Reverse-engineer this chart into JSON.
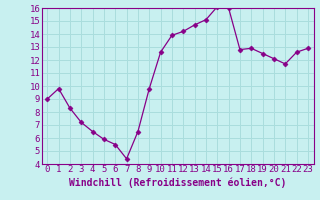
{
  "x": [
    0,
    1,
    2,
    3,
    4,
    5,
    6,
    7,
    8,
    9,
    10,
    11,
    12,
    13,
    14,
    15,
    16,
    17,
    18,
    19,
    20,
    21,
    22,
    23
  ],
  "y": [
    9.0,
    9.8,
    8.3,
    7.2,
    6.5,
    5.9,
    5.5,
    4.4,
    6.5,
    9.8,
    12.6,
    13.9,
    14.2,
    14.7,
    15.1,
    16.1,
    16.0,
    12.8,
    12.9,
    12.5,
    12.1,
    11.7,
    12.6,
    12.9
  ],
  "line_color": "#880088",
  "marker": "D",
  "marker_size": 2.5,
  "bg_color": "#c8f0f0",
  "grid_color": "#aadddd",
  "xlabel": "Windchill (Refroidissement éolien,°C)",
  "xlabel_fontsize": 7,
  "tick_fontsize": 6.5,
  "ylim": [
    4,
    16
  ],
  "xlim": [
    -0.5,
    23.5
  ],
  "yticks": [
    4,
    5,
    6,
    7,
    8,
    9,
    10,
    11,
    12,
    13,
    14,
    15,
    16
  ],
  "xticks": [
    0,
    1,
    2,
    3,
    4,
    5,
    6,
    7,
    8,
    9,
    10,
    11,
    12,
    13,
    14,
    15,
    16,
    17,
    18,
    19,
    20,
    21,
    22,
    23
  ]
}
